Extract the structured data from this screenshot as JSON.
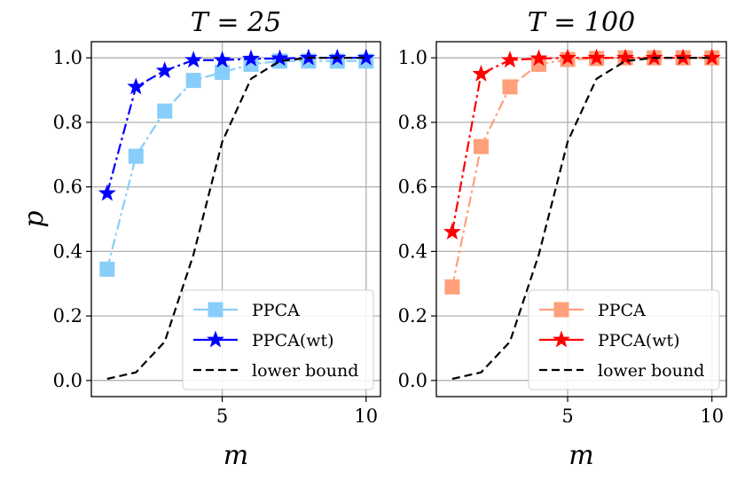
{
  "figure": {
    "ylabel": "p"
  },
  "chart_data": [
    {
      "type": "line",
      "title": "T = 25",
      "xlabel": "m",
      "ylabel": "p",
      "xlim": [
        0.45,
        10.5
      ],
      "ylim": [
        -0.05,
        1.05
      ],
      "xticks": [
        5,
        10
      ],
      "yticks": [
        0.0,
        0.2,
        0.4,
        0.6,
        0.8,
        1.0
      ],
      "xtick_labels": [
        "5",
        "10"
      ],
      "ytick_labels": [
        "0.0",
        "0.2",
        "0.4",
        "0.6",
        "0.8",
        "1.0"
      ],
      "grid": true,
      "legend_position": "lower-right",
      "series": [
        {
          "name": "PPCA",
          "color": "#87cefa",
          "marker": "square",
          "linestyle": "dash-dot",
          "x": [
            1,
            2,
            3,
            4,
            5,
            6,
            7,
            8,
            9,
            10
          ],
          "y": [
            0.345,
            0.695,
            0.835,
            0.93,
            0.955,
            0.98,
            0.99,
            0.99,
            0.99,
            0.99
          ]
        },
        {
          "name": "PPCA(wt)",
          "color": "#0000ff",
          "marker": "star",
          "linestyle": "dash-dot",
          "x": [
            1,
            2,
            3,
            4,
            5,
            6,
            7,
            8,
            9,
            10
          ],
          "y": [
            0.58,
            0.91,
            0.96,
            0.993,
            0.993,
            0.997,
            0.998,
            1.0,
            1.0,
            1.0
          ]
        },
        {
          "name": "lower bound",
          "color": "#000000",
          "marker": "none",
          "linestyle": "dashed",
          "x": [
            1,
            2,
            3,
            4,
            5,
            6,
            7,
            8,
            9,
            10
          ],
          "y": [
            0.005,
            0.025,
            0.12,
            0.39,
            0.74,
            0.935,
            0.99,
            1.0,
            1.0,
            1.0
          ]
        }
      ]
    },
    {
      "type": "line",
      "title": "T = 100",
      "xlabel": "m",
      "ylabel": "",
      "xlim": [
        0.45,
        10.5
      ],
      "ylim": [
        -0.05,
        1.05
      ],
      "xticks": [
        5,
        10
      ],
      "yticks": [
        0.0,
        0.2,
        0.4,
        0.6,
        0.8,
        1.0
      ],
      "xtick_labels": [
        "5",
        "10"
      ],
      "ytick_labels": [
        "0.0",
        "0.2",
        "0.4",
        "0.6",
        "0.8",
        "1.0"
      ],
      "grid": true,
      "legend_position": "lower-right",
      "series": [
        {
          "name": "PPCA",
          "color": "#ffa07a",
          "marker": "square",
          "linestyle": "dash-dot",
          "x": [
            1,
            2,
            3,
            4,
            5,
            6,
            7,
            8,
            9,
            10
          ],
          "y": [
            0.29,
            0.725,
            0.91,
            0.98,
            0.995,
            0.998,
            1.0,
            1.0,
            1.0,
            1.0
          ]
        },
        {
          "name": "PPCA(wt)",
          "color": "#ff0000",
          "marker": "star",
          "linestyle": "dash-dot",
          "x": [
            1,
            2,
            3,
            4,
            5,
            6,
            7,
            8,
            9,
            10
          ],
          "y": [
            0.46,
            0.95,
            0.993,
            0.998,
            1.0,
            1.0,
            1.0,
            1.0,
            1.0,
            1.0
          ]
        },
        {
          "name": "lower bound",
          "color": "#000000",
          "marker": "none",
          "linestyle": "dashed",
          "x": [
            1,
            2,
            3,
            4,
            5,
            6,
            7,
            8,
            9,
            10
          ],
          "y": [
            0.005,
            0.025,
            0.12,
            0.39,
            0.74,
            0.935,
            0.99,
            1.0,
            1.0,
            1.0
          ]
        }
      ]
    }
  ]
}
